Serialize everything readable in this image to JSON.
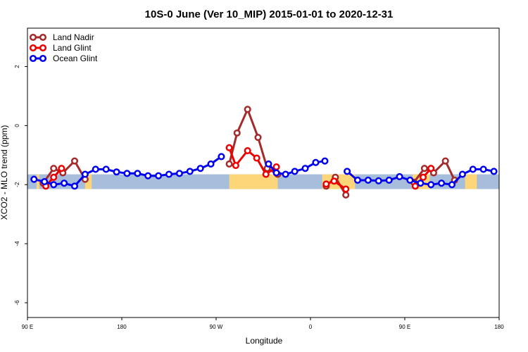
{
  "chart_data": {
    "type": "line",
    "title": "10S-0 June (Ver 10_MIP)   2015-01-01 to 2020-12-31",
    "xlabel": "Longitude",
    "ylabel": "XCO2 - MLO trend (ppm)",
    "xlim": [
      90,
      450
    ],
    "ylim": [
      -6.5,
      3.3
    ],
    "x_ticks": [
      {
        "value": 90,
        "label": "90 E"
      },
      {
        "value": 162,
        "label": "180"
      },
      {
        "value": 234,
        "label": "90 W"
      },
      {
        "value": 306,
        "label": "0"
      },
      {
        "value": 378,
        "label": "90 E"
      },
      {
        "value": 450,
        "label": "180"
      }
    ],
    "y_ticks": [
      {
        "value": 2,
        "label": "2"
      },
      {
        "value": 0,
        "label": "0"
      },
      {
        "value": -2,
        "label": "-2"
      },
      {
        "value": -4,
        "label": "-4"
      },
      {
        "value": -6,
        "label": "-6"
      }
    ],
    "legend_position": "top-left",
    "band": {
      "y_top": -1.65,
      "y_bottom": -2.15,
      "ocean_color": "#a6bddb",
      "land_color": "#fdd67a"
    },
    "land_regions": [
      [
        97,
        99
      ],
      [
        134,
        139
      ],
      [
        244,
        281
      ],
      [
        315,
        340
      ],
      [
        384,
        397
      ],
      [
        424,
        433
      ]
    ],
    "series": [
      {
        "name": "Land Nadir",
        "color": "#a52a2a",
        "segments": [
          [
            [
              102,
              -1.95
            ],
            [
              110,
              -1.45
            ],
            [
              117,
              -1.6
            ],
            [
              126,
              -1.2
            ],
            [
              134,
              -1.82
            ]
          ],
          [
            [
              244,
              -1.3
            ],
            [
              250,
              -0.25
            ],
            [
              258,
              0.55
            ],
            [
              266,
              -0.4
            ],
            [
              273,
              -1.45
            ],
            [
              281,
              -1.65
            ]
          ],
          [
            [
              318,
              -2.05
            ],
            [
              325,
              -1.75
            ],
            [
              333,
              -2.35
            ]
          ],
          [
            [
              385,
              -1.92
            ],
            [
              393,
              -1.45
            ],
            [
              400,
              -1.6
            ],
            [
              409,
              -1.2
            ],
            [
              416,
              -1.85
            ]
          ]
        ]
      },
      {
        "name": "Land Glint",
        "color": "#ee0000",
        "segments": [
          [
            [
              104,
              -2.05
            ],
            [
              110,
              -1.75
            ],
            [
              116,
              -1.45
            ]
          ],
          [
            [
              244,
              -0.75
            ],
            [
              249,
              -1.35
            ],
            [
              258,
              -0.85
            ],
            [
              265,
              -1.1
            ],
            [
              272,
              -1.65
            ],
            [
              280,
              -1.4
            ]
          ],
          [
            [
              318,
              -1.98
            ],
            [
              324,
              -1.88
            ],
            [
              333,
              -2.15
            ]
          ],
          [
            [
              386,
              -2.05
            ],
            [
              392,
              -1.75
            ],
            [
              398,
              -1.45
            ]
          ]
        ]
      },
      {
        "name": "Ocean Glint",
        "color": "#0000ee",
        "segments": [
          [
            [
              95,
              -1.82
            ],
            [
              103,
              -1.9
            ],
            [
              110,
              -2.0
            ],
            [
              118,
              -1.95
            ],
            [
              126,
              -2.05
            ],
            [
              134,
              -1.65
            ],
            [
              142,
              -1.48
            ],
            [
              150,
              -1.48
            ],
            [
              158,
              -1.57
            ],
            [
              166,
              -1.62
            ],
            [
              174,
              -1.62
            ],
            [
              182,
              -1.7
            ],
            [
              190,
              -1.7
            ],
            [
              198,
              -1.65
            ],
            [
              206,
              -1.62
            ],
            [
              214,
              -1.55
            ],
            [
              222,
              -1.45
            ],
            [
              230,
              -1.3
            ],
            [
              238,
              -1.05
            ]
          ],
          [
            [
              274,
              -1.3
            ],
            [
              280,
              -1.6
            ],
            [
              287,
              -1.65
            ],
            [
              294,
              -1.55
            ],
            [
              302,
              -1.45
            ],
            [
              310,
              -1.25
            ],
            [
              317,
              -1.2
            ]
          ],
          [
            [
              334,
              -1.55
            ],
            [
              342,
              -1.85
            ],
            [
              350,
              -1.85
            ],
            [
              358,
              -1.87
            ],
            [
              366,
              -1.85
            ],
            [
              374,
              -1.73
            ],
            [
              382,
              -1.85
            ],
            [
              390,
              -1.95
            ],
            [
              398,
              -2.0
            ],
            [
              406,
              -1.95
            ],
            [
              414,
              -2.0
            ],
            [
              422,
              -1.65
            ],
            [
              430,
              -1.48
            ],
            [
              438,
              -1.48
            ],
            [
              446,
              -1.55
            ]
          ]
        ]
      }
    ]
  }
}
